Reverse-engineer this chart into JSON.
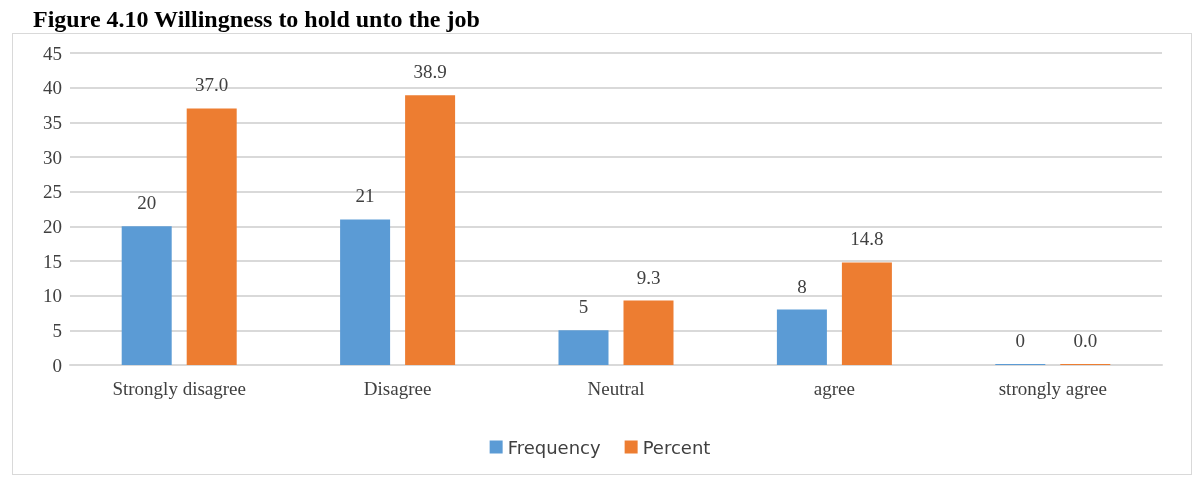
{
  "chart_data": {
    "type": "bar",
    "title": "Figure 4.10 Willingness to hold unto the job",
    "categories": [
      "Strongly disagree",
      "Disagree",
      "Neutral",
      "agree",
      "strongly agree"
    ],
    "series": [
      {
        "name": "Frequency",
        "color": "#5b9bd5",
        "values": [
          20,
          21,
          5,
          8,
          0
        ],
        "value_labels": [
          "20",
          "21",
          "5",
          "8",
          "0"
        ]
      },
      {
        "name": "Percent",
        "color": "#ed7d31",
        "values": [
          37.0,
          38.9,
          9.3,
          14.8,
          0.0
        ],
        "value_labels": [
          "37.0",
          "38.9",
          "9.3",
          "14.8",
          "0.0"
        ]
      }
    ],
    "ylim": [
      0,
      45
    ],
    "yticks": [
      0,
      5,
      10,
      15,
      20,
      25,
      30,
      35,
      40,
      45
    ],
    "grid": "y",
    "legend": "bottom"
  }
}
